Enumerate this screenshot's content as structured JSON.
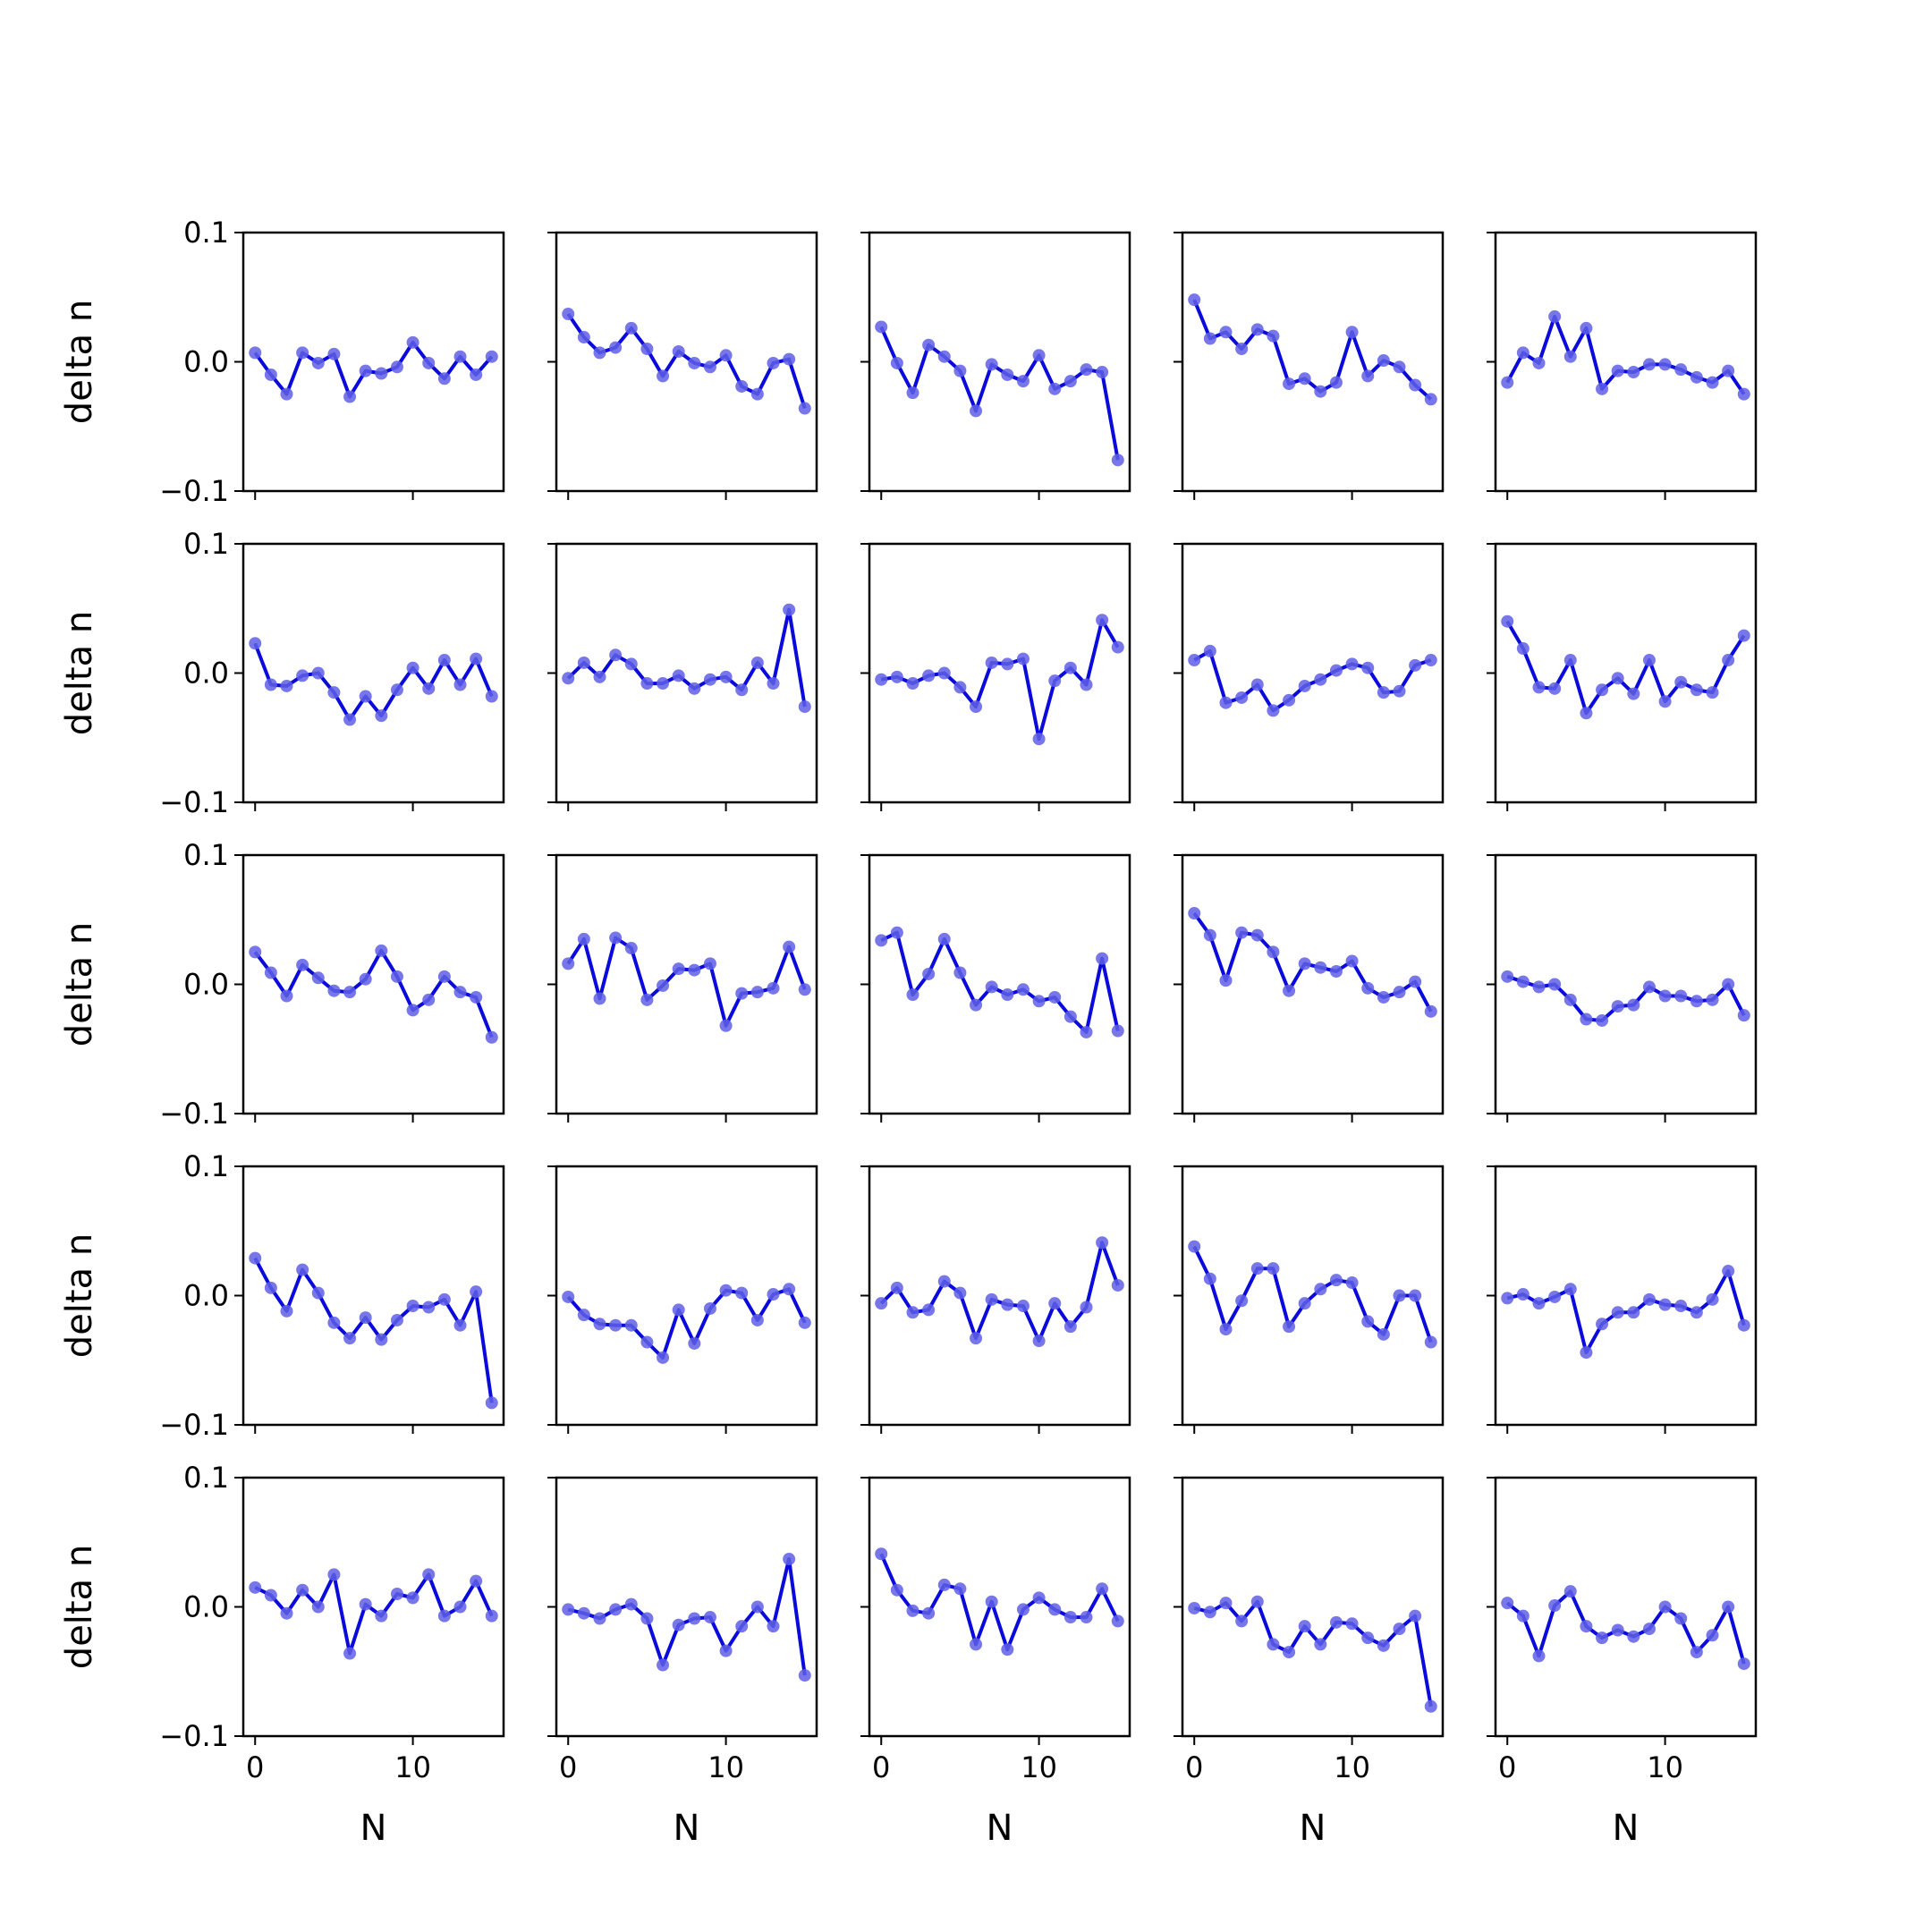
{
  "figure": {
    "rows": 5,
    "cols": 5,
    "line_color": "#0a0adc",
    "marker_color": "#5f5fe6",
    "xlabel": "N",
    "ylabel": "delta n",
    "xlim": [
      -0.75,
      15.75
    ],
    "ylim": [
      -0.1,
      0.1
    ],
    "xticks": [
      0,
      10
    ],
    "xtick_labels": [
      "0",
      "10"
    ],
    "yticks": [
      0.1,
      0.0,
      -0.1
    ],
    "ytick_labels": [
      "0.1",
      "0.0",
      "−0.1"
    ]
  },
  "chart_data": [
    {
      "type": "line",
      "x": [
        0,
        1,
        2,
        3,
        4,
        5,
        6,
        7,
        8,
        9,
        10,
        11,
        12,
        13,
        14,
        15
      ],
      "series": [
        {
          "values": [
            0.007,
            -0.01,
            -0.025,
            0.007,
            -0.001,
            0.006,
            -0.027,
            -0.007,
            -0.009,
            -0.004,
            0.015,
            -0.001,
            -0.013,
            0.004,
            -0.01,
            0.004
          ]
        }
      ]
    },
    {
      "type": "line",
      "x": [
        0,
        1,
        2,
        3,
        4,
        5,
        6,
        7,
        8,
        9,
        10,
        11,
        12,
        13,
        14,
        15
      ],
      "series": [
        {
          "values": [
            0.037,
            0.019,
            0.007,
            0.011,
            0.026,
            0.01,
            -0.011,
            0.008,
            -0.001,
            -0.004,
            0.005,
            -0.019,
            -0.025,
            -0.001,
            0.002,
            -0.036
          ]
        }
      ]
    },
    {
      "type": "line",
      "x": [
        0,
        1,
        2,
        3,
        4,
        5,
        6,
        7,
        8,
        9,
        10,
        11,
        12,
        13,
        14,
        15
      ],
      "series": [
        {
          "values": [
            0.027,
            -0.001,
            -0.024,
            0.013,
            0.004,
            -0.007,
            -0.038,
            -0.002,
            -0.01,
            -0.015,
            0.005,
            -0.021,
            -0.015,
            -0.006,
            -0.008,
            -0.076
          ]
        }
      ]
    },
    {
      "type": "line",
      "x": [
        0,
        1,
        2,
        3,
        4,
        5,
        6,
        7,
        8,
        9,
        10,
        11,
        12,
        13,
        14,
        15
      ],
      "series": [
        {
          "values": [
            0.048,
            0.018,
            0.023,
            0.01,
            0.025,
            0.02,
            -0.017,
            -0.013,
            -0.023,
            -0.016,
            0.023,
            -0.011,
            0.001,
            -0.004,
            -0.018,
            -0.029
          ]
        }
      ]
    },
    {
      "type": "line",
      "x": [
        0,
        1,
        2,
        3,
        4,
        5,
        6,
        7,
        8,
        9,
        10,
        11,
        12,
        13,
        14,
        15
      ],
      "series": [
        {
          "values": [
            -0.016,
            0.007,
            -0.001,
            0.035,
            0.004,
            0.026,
            -0.021,
            -0.007,
            -0.008,
            -0.002,
            -0.002,
            -0.006,
            -0.012,
            -0.016,
            -0.007,
            -0.025
          ]
        }
      ]
    },
    {
      "type": "line",
      "x": [
        0,
        1,
        2,
        3,
        4,
        5,
        6,
        7,
        8,
        9,
        10,
        11,
        12,
        13,
        14,
        15
      ],
      "series": [
        {
          "values": [
            0.023,
            -0.009,
            -0.01,
            -0.002,
            0.0,
            -0.015,
            -0.036,
            -0.018,
            -0.033,
            -0.013,
            0.004,
            -0.012,
            0.01,
            -0.009,
            0.011,
            -0.018
          ]
        }
      ]
    },
    {
      "type": "line",
      "x": [
        0,
        1,
        2,
        3,
        4,
        5,
        6,
        7,
        8,
        9,
        10,
        11,
        12,
        13,
        14,
        15
      ],
      "series": [
        {
          "values": [
            -0.004,
            0.008,
            -0.003,
            0.014,
            0.007,
            -0.008,
            -0.008,
            -0.002,
            -0.012,
            -0.005,
            -0.003,
            -0.013,
            0.008,
            -0.008,
            0.049,
            -0.026
          ]
        }
      ]
    },
    {
      "type": "line",
      "x": [
        0,
        1,
        2,
        3,
        4,
        5,
        6,
        7,
        8,
        9,
        10,
        11,
        12,
        13,
        14,
        15
      ],
      "series": [
        {
          "values": [
            -0.005,
            -0.003,
            -0.008,
            -0.002,
            0.0,
            -0.011,
            -0.026,
            0.008,
            0.007,
            0.011,
            -0.051,
            -0.006,
            0.004,
            -0.009,
            0.041,
            0.02
          ]
        }
      ]
    },
    {
      "type": "line",
      "x": [
        0,
        1,
        2,
        3,
        4,
        5,
        6,
        7,
        8,
        9,
        10,
        11,
        12,
        13,
        14,
        15
      ],
      "series": [
        {
          "values": [
            0.01,
            0.017,
            -0.023,
            -0.019,
            -0.009,
            -0.029,
            -0.021,
            -0.01,
            -0.005,
            0.002,
            0.007,
            0.004,
            -0.015,
            -0.014,
            0.006,
            0.01
          ]
        }
      ]
    },
    {
      "type": "line",
      "x": [
        0,
        1,
        2,
        3,
        4,
        5,
        6,
        7,
        8,
        9,
        10,
        11,
        12,
        13,
        14,
        15
      ],
      "series": [
        {
          "values": [
            0.04,
            0.019,
            -0.011,
            -0.012,
            0.01,
            -0.031,
            -0.013,
            -0.004,
            -0.016,
            0.01,
            -0.022,
            -0.007,
            -0.013,
            -0.015,
            0.01,
            0.029
          ]
        }
      ]
    },
    {
      "type": "line",
      "x": [
        0,
        1,
        2,
        3,
        4,
        5,
        6,
        7,
        8,
        9,
        10,
        11,
        12,
        13,
        14,
        15
      ],
      "series": [
        {
          "values": [
            0.025,
            0.009,
            -0.009,
            0.015,
            0.005,
            -0.005,
            -0.006,
            0.004,
            0.026,
            0.006,
            -0.02,
            -0.012,
            0.006,
            -0.006,
            -0.01,
            -0.041
          ]
        }
      ]
    },
    {
      "type": "line",
      "x": [
        0,
        1,
        2,
        3,
        4,
        5,
        6,
        7,
        8,
        9,
        10,
        11,
        12,
        13,
        14,
        15
      ],
      "series": [
        {
          "values": [
            0.016,
            0.035,
            -0.011,
            0.036,
            0.028,
            -0.012,
            -0.001,
            0.012,
            0.011,
            0.016,
            -0.032,
            -0.007,
            -0.006,
            -0.003,
            0.029,
            -0.004
          ]
        }
      ]
    },
    {
      "type": "line",
      "x": [
        0,
        1,
        2,
        3,
        4,
        5,
        6,
        7,
        8,
        9,
        10,
        11,
        12,
        13,
        14,
        15
      ],
      "series": [
        {
          "values": [
            0.034,
            0.04,
            -0.008,
            0.008,
            0.035,
            0.009,
            -0.016,
            -0.002,
            -0.008,
            -0.004,
            -0.013,
            -0.01,
            -0.025,
            -0.037,
            0.02,
            -0.036
          ]
        }
      ]
    },
    {
      "type": "line",
      "x": [
        0,
        1,
        2,
        3,
        4,
        5,
        6,
        7,
        8,
        9,
        10,
        11,
        12,
        13,
        14,
        15
      ],
      "series": [
        {
          "values": [
            0.055,
            0.038,
            0.003,
            0.04,
            0.038,
            0.025,
            -0.005,
            0.016,
            0.013,
            0.01,
            0.018,
            -0.003,
            -0.01,
            -0.006,
            0.002,
            -0.021
          ]
        }
      ]
    },
    {
      "type": "line",
      "x": [
        0,
        1,
        2,
        3,
        4,
        5,
        6,
        7,
        8,
        9,
        10,
        11,
        12,
        13,
        14,
        15
      ],
      "series": [
        {
          "values": [
            0.006,
            0.002,
            -0.002,
            0.0,
            -0.012,
            -0.027,
            -0.028,
            -0.017,
            -0.016,
            -0.002,
            -0.009,
            -0.009,
            -0.013,
            -0.012,
            0.0,
            -0.024
          ]
        }
      ]
    },
    {
      "type": "line",
      "x": [
        0,
        1,
        2,
        3,
        4,
        5,
        6,
        7,
        8,
        9,
        10,
        11,
        12,
        13,
        14,
        15
      ],
      "series": [
        {
          "values": [
            0.029,
            0.006,
            -0.012,
            0.02,
            0.002,
            -0.021,
            -0.033,
            -0.017,
            -0.034,
            -0.019,
            -0.008,
            -0.009,
            -0.003,
            -0.023,
            0.003,
            -0.083
          ]
        }
      ]
    },
    {
      "type": "line",
      "x": [
        0,
        1,
        2,
        3,
        4,
        5,
        6,
        7,
        8,
        9,
        10,
        11,
        12,
        13,
        14,
        15
      ],
      "series": [
        {
          "values": [
            -0.001,
            -0.015,
            -0.022,
            -0.023,
            -0.023,
            -0.036,
            -0.048,
            -0.011,
            -0.037,
            -0.01,
            0.004,
            0.002,
            -0.019,
            0.001,
            0.005,
            -0.021
          ]
        }
      ]
    },
    {
      "type": "line",
      "x": [
        0,
        1,
        2,
        3,
        4,
        5,
        6,
        7,
        8,
        9,
        10,
        11,
        12,
        13,
        14,
        15
      ],
      "series": [
        {
          "values": [
            -0.006,
            0.006,
            -0.013,
            -0.011,
            0.011,
            0.002,
            -0.033,
            -0.003,
            -0.007,
            -0.008,
            -0.035,
            -0.006,
            -0.024,
            -0.009,
            0.041,
            0.008
          ]
        }
      ]
    },
    {
      "type": "line",
      "x": [
        0,
        1,
        2,
        3,
        4,
        5,
        6,
        7,
        8,
        9,
        10,
        11,
        12,
        13,
        14,
        15
      ],
      "series": [
        {
          "values": [
            0.038,
            0.013,
            -0.026,
            -0.004,
            0.021,
            0.021,
            -0.024,
            -0.006,
            0.005,
            0.012,
            0.01,
            -0.02,
            -0.03,
            0.0,
            0.0,
            -0.036
          ]
        }
      ]
    },
    {
      "type": "line",
      "x": [
        0,
        1,
        2,
        3,
        4,
        5,
        6,
        7,
        8,
        9,
        10,
        11,
        12,
        13,
        14,
        15
      ],
      "series": [
        {
          "values": [
            -0.002,
            0.001,
            -0.006,
            -0.001,
            0.005,
            -0.044,
            -0.022,
            -0.013,
            -0.013,
            -0.003,
            -0.007,
            -0.008,
            -0.013,
            -0.003,
            0.019,
            -0.023
          ]
        }
      ]
    },
    {
      "type": "line",
      "x": [
        0,
        1,
        2,
        3,
        4,
        5,
        6,
        7,
        8,
        9,
        10,
        11,
        12,
        13,
        14,
        15
      ],
      "series": [
        {
          "values": [
            0.015,
            0.009,
            -0.005,
            0.013,
            0.0,
            0.025,
            -0.036,
            0.002,
            -0.007,
            0.01,
            0.007,
            0.025,
            -0.007,
            0.0,
            0.02,
            -0.007
          ]
        }
      ]
    },
    {
      "type": "line",
      "x": [
        0,
        1,
        2,
        3,
        4,
        5,
        6,
        7,
        8,
        9,
        10,
        11,
        12,
        13,
        14,
        15
      ],
      "series": [
        {
          "values": [
            -0.002,
            -0.005,
            -0.009,
            -0.002,
            0.002,
            -0.009,
            -0.045,
            -0.014,
            -0.009,
            -0.008,
            -0.034,
            -0.015,
            0.0,
            -0.015,
            0.037,
            -0.053
          ]
        }
      ]
    },
    {
      "type": "line",
      "x": [
        0,
        1,
        2,
        3,
        4,
        5,
        6,
        7,
        8,
        9,
        10,
        11,
        12,
        13,
        14,
        15
      ],
      "series": [
        {
          "values": [
            0.041,
            0.013,
            -0.003,
            -0.005,
            0.017,
            0.014,
            -0.029,
            0.004,
            -0.033,
            -0.002,
            0.007,
            -0.002,
            -0.008,
            -0.008,
            0.014,
            -0.011
          ]
        }
      ]
    },
    {
      "type": "line",
      "x": [
        0,
        1,
        2,
        3,
        4,
        5,
        6,
        7,
        8,
        9,
        10,
        11,
        12,
        13,
        14,
        15
      ],
      "series": [
        {
          "values": [
            -0.001,
            -0.004,
            0.003,
            -0.011,
            0.004,
            -0.029,
            -0.035,
            -0.015,
            -0.029,
            -0.012,
            -0.013,
            -0.024,
            -0.03,
            -0.017,
            -0.007,
            -0.077
          ]
        }
      ]
    },
    {
      "type": "line",
      "x": [
        0,
        1,
        2,
        3,
        4,
        5,
        6,
        7,
        8,
        9,
        10,
        11,
        12,
        13,
        14,
        15
      ],
      "series": [
        {
          "values": [
            0.003,
            -0.007,
            -0.038,
            0.001,
            0.012,
            -0.015,
            -0.024,
            -0.018,
            -0.023,
            -0.017,
            0.0,
            -0.009,
            -0.035,
            -0.022,
            0.0,
            -0.044
          ]
        }
      ]
    }
  ]
}
